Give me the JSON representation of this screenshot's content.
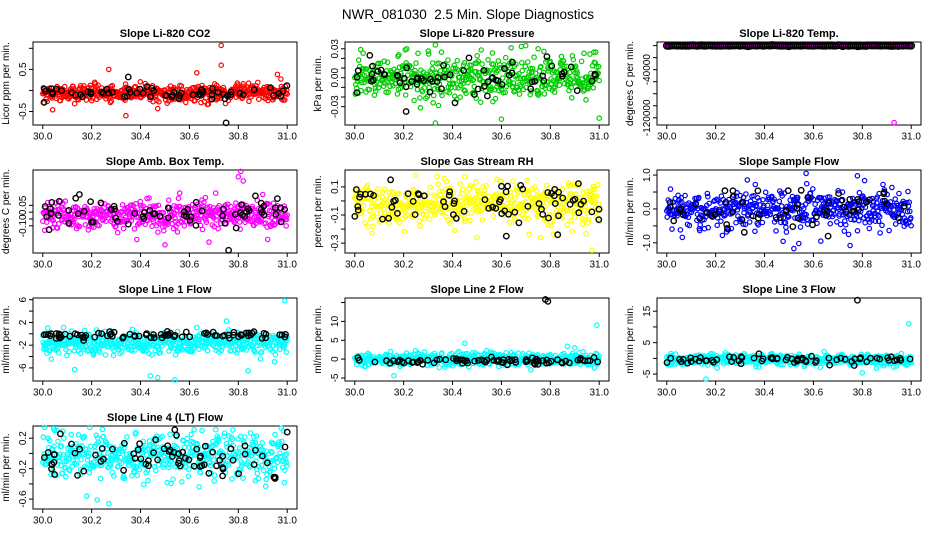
{
  "figure": {
    "title": "NWR_081030  2.5 Min. Slope Diagnostics",
    "background": "#FFFFFF",
    "frame_color": "#000000",
    "marker": "open-circle"
  },
  "axes": {
    "xlim": [
      29.96,
      31.04
    ],
    "xticks": [
      {
        "v": 30.0,
        "l": "30.0"
      },
      {
        "v": 30.2,
        "l": "30.2"
      },
      {
        "v": 30.4,
        "l": "30.4"
      },
      {
        "v": 30.6,
        "l": "30.6"
      },
      {
        "v": 30.8,
        "l": "30.8"
      },
      {
        "v": 31.0,
        "l": "31.0"
      }
    ]
  },
  "chart_data": [
    {
      "id": "slope-li820-co2",
      "type": "scatter",
      "title": "Slope Li-820 CO2",
      "ylabel": "Licor ppm per min.",
      "color": "#FF0000",
      "ylim": [
        -0.82,
        1.15
      ],
      "yticks": [
        {
          "v": 1.0,
          "l": ""
        },
        {
          "v": 0.5,
          "l": "0.5"
        },
        {
          "v": 0.0,
          "l": ""
        },
        {
          "v": -0.5,
          "l": "-0.5"
        }
      ],
      "series": [
        {
          "name": "slope",
          "color": "#FF0000",
          "n": 500,
          "mean": -0.07,
          "sd": 0.1,
          "r": 2.2,
          "spread": "even"
        },
        {
          "name": "flagged",
          "color": "#000000",
          "n": 65,
          "mean": -0.09,
          "sd": 0.08,
          "r": 2.7,
          "spread": "random"
        }
      ],
      "outliers": [
        {
          "x": 30.73,
          "y": 1.07,
          "s": "slope"
        },
        {
          "x": 30.73,
          "y": 0.6,
          "s": "slope"
        },
        {
          "x": 30.27,
          "y": 0.5,
          "s": "slope"
        },
        {
          "x": 30.63,
          "y": 0.42,
          "s": "slope"
        },
        {
          "x": 30.96,
          "y": 0.38,
          "s": "slope"
        },
        {
          "x": 30.04,
          "y": -0.46,
          "s": "slope"
        },
        {
          "x": 30.34,
          "y": -0.6,
          "s": "slope"
        },
        {
          "x": 30.47,
          "y": -0.43,
          "s": "slope"
        },
        {
          "x": 30.75,
          "y": -0.77,
          "s": "flagged"
        },
        {
          "x": 30.35,
          "y": 0.32,
          "s": "flagged"
        }
      ]
    },
    {
      "id": "slope-li820-pressure",
      "type": "scatter",
      "title": "Slope Li-820 Pressure",
      "ylabel": "kPa per min.",
      "color": "#00CD00",
      "ylim": [
        -0.049,
        0.037
      ],
      "yticks": [
        {
          "v": 0.03,
          "l": "0.03"
        },
        {
          "v": 0.02,
          "l": ""
        },
        {
          "v": 0.01,
          "l": ""
        },
        {
          "v": 0.0,
          "l": "0.00"
        },
        {
          "v": -0.01,
          "l": ""
        },
        {
          "v": -0.02,
          "l": ""
        },
        {
          "v": -0.03,
          "l": "-0.03"
        }
      ],
      "series": [
        {
          "name": "slope",
          "color": "#00CD00",
          "n": 500,
          "mean": 0.0,
          "sd": 0.011,
          "r": 2.2,
          "spread": "even"
        },
        {
          "name": "flagged",
          "color": "#000000",
          "n": 65,
          "mean": -0.001,
          "sd": 0.009,
          "r": 2.7,
          "spread": "random"
        }
      ],
      "outliers": [
        {
          "x": 30.33,
          "y": 0.034,
          "s": "slope"
        },
        {
          "x": 30.33,
          "y": -0.047,
          "s": "slope"
        },
        {
          "x": 30.6,
          "y": -0.043,
          "s": "slope"
        },
        {
          "x": 31.0,
          "y": -0.042,
          "s": "slope"
        },
        {
          "x": 30.75,
          "y": 0.03,
          "s": "slope"
        },
        {
          "x": 30.64,
          "y": 0.031,
          "s": "slope"
        },
        {
          "x": 30.21,
          "y": -0.035,
          "s": "flagged"
        },
        {
          "x": 30.41,
          "y": -0.026,
          "s": "flagged"
        }
      ]
    },
    {
      "id": "slope-li820-temp",
      "type": "scatter",
      "title": "Slope Li-820 Temp.",
      "ylabel": "degrees C per min.",
      "color": "#FF00FF",
      "ylim": [
        -132000,
        6000
      ],
      "yticks": [
        {
          "v": 0,
          "l": ""
        },
        {
          "v": -20000,
          "l": ""
        },
        {
          "v": -40000,
          "l": "-40000"
        },
        {
          "v": -60000,
          "l": ""
        },
        {
          "v": -80000,
          "l": ""
        },
        {
          "v": -100000,
          "l": ""
        },
        {
          "v": -120000,
          "l": "-120000"
        }
      ],
      "series": [
        {
          "name": "slope",
          "color": "#FF00FF",
          "n": 550,
          "mean": 0,
          "sd": 500,
          "r": 2.6,
          "spread": "even"
        },
        {
          "name": "flagged",
          "color": "#000000",
          "n": 115,
          "mean": 0,
          "sd": 400,
          "r": 3.2,
          "spread": "even"
        }
      ],
      "outliers": [
        {
          "x": 30.93,
          "y": -128000,
          "s": "slope"
        }
      ]
    },
    {
      "id": "slope-amb-box-temp",
      "type": "scatter",
      "title": "Slope Amb. Box Temp.",
      "ylabel": "degrees C per min.",
      "color": "#FF00FF",
      "ylim": [
        -0.3,
        0.31
      ],
      "yticks": [
        {
          "v": 0.05,
          "l": "0.05"
        },
        {
          "v": 0.0,
          "l": ""
        },
        {
          "v": -0.05,
          "l": ""
        },
        {
          "v": -0.1,
          "l": "-0.10"
        }
      ],
      "series": [
        {
          "name": "slope",
          "color": "#FF00FF",
          "n": 500,
          "mean": -0.02,
          "sd": 0.05,
          "r": 2.2,
          "spread": "even"
        },
        {
          "name": "flagged",
          "color": "#000000",
          "n": 65,
          "mean": -0.015,
          "sd": 0.045,
          "r": 2.7,
          "spread": "random"
        }
      ],
      "outliers": [
        {
          "x": 30.81,
          "y": 0.3,
          "s": "slope"
        },
        {
          "x": 30.8,
          "y": 0.26,
          "s": "slope"
        },
        {
          "x": 30.82,
          "y": 0.23,
          "s": "slope"
        },
        {
          "x": 30.56,
          "y": 0.14,
          "s": "slope"
        },
        {
          "x": 30.9,
          "y": 0.13,
          "s": "slope"
        },
        {
          "x": 30.5,
          "y": -0.24,
          "s": "slope"
        },
        {
          "x": 30.68,
          "y": -0.22,
          "s": "slope"
        },
        {
          "x": 30.92,
          "y": -0.2,
          "s": "slope"
        },
        {
          "x": 30.15,
          "y": 0.13,
          "s": "flagged"
        },
        {
          "x": 30.76,
          "y": -0.28,
          "s": "flagged"
        },
        {
          "x": 30.87,
          "y": 0.12,
          "s": "flagged"
        },
        {
          "x": 30.96,
          "y": 0.1,
          "s": "flagged"
        }
      ]
    },
    {
      "id": "slope-gas-stream-rh",
      "type": "scatter",
      "title": "Slope Gas Stream RH",
      "ylabel": "percent per min.",
      "color": "#FFFF00",
      "ylim": [
        -0.37,
        0.22
      ],
      "yticks": [
        {
          "v": 0.1,
          "l": "0.1"
        },
        {
          "v": 0.0,
          "l": ""
        },
        {
          "v": -0.1,
          "l": "-0.1"
        },
        {
          "v": -0.2,
          "l": ""
        },
        {
          "v": -0.3,
          "l": "-0.3"
        }
      ],
      "series": [
        {
          "name": "slope",
          "color": "#FFFF00",
          "n": 500,
          "mean": -0.02,
          "sd": 0.075,
          "r": 2.2,
          "spread": "even"
        },
        {
          "name": "flagged",
          "color": "#000000",
          "n": 70,
          "mean": -0.02,
          "sd": 0.075,
          "r": 2.7,
          "spread": "random"
        }
      ],
      "outliers": [
        {
          "x": 30.97,
          "y": -0.35,
          "s": "slope"
        },
        {
          "x": 30.5,
          "y": -0.26,
          "s": "slope"
        },
        {
          "x": 30.76,
          "y": -0.26,
          "s": "slope"
        },
        {
          "x": 30.07,
          "y": -0.23,
          "s": "slope"
        },
        {
          "x": 30.25,
          "y": 0.18,
          "s": "slope"
        },
        {
          "x": 30.45,
          "y": 0.17,
          "s": "slope"
        },
        {
          "x": 30.62,
          "y": -0.25,
          "s": "flagged"
        },
        {
          "x": 30.83,
          "y": -0.24,
          "s": "flagged"
        }
      ]
    },
    {
      "id": "slope-sample-flow",
      "type": "scatter",
      "title": "Slope Sample Flow",
      "ylabel": "ml/min per min.",
      "color": "#0000FF",
      "ylim": [
        -1.3,
        1.15
      ],
      "yticks": [
        {
          "v": 1.0,
          "l": "1.0"
        },
        {
          "v": 0.5,
          "l": ""
        },
        {
          "v": 0.0,
          "l": "0.0"
        },
        {
          "v": -0.5,
          "l": ""
        },
        {
          "v": -1.0,
          "l": "-1.0"
        }
      ],
      "series": [
        {
          "name": "slope",
          "color": "#0000FF",
          "n": 520,
          "mean": 0.0,
          "sd": 0.28,
          "r": 2.2,
          "spread": "even"
        },
        {
          "name": "flagged",
          "color": "#000000",
          "n": 60,
          "mean": -0.05,
          "sd": 0.3,
          "r": 2.7,
          "spread": "random"
        }
      ],
      "outliers": [
        {
          "x": 30.52,
          "y": -1.17,
          "s": "slope"
        },
        {
          "x": 30.54,
          "y": -1.02,
          "s": "slope"
        },
        {
          "x": 30.75,
          "y": -1.08,
          "s": "slope"
        },
        {
          "x": 30.63,
          "y": -0.95,
          "s": "slope"
        },
        {
          "x": 30.57,
          "y": 1.05,
          "s": "slope"
        },
        {
          "x": 30.78,
          "y": 0.98,
          "s": "slope"
        },
        {
          "x": 30.55,
          "y": 0.55,
          "s": "flagged"
        },
        {
          "x": 30.66,
          "y": -0.8,
          "s": "flagged"
        }
      ]
    },
    {
      "id": "slope-line1-flow",
      "type": "scatter",
      "title": "Slope Line 1 Flow",
      "ylabel": "ml/min per min.",
      "color": "#00FFFF",
      "ylim": [
        -8.3,
        6.3
      ],
      "yticks": [
        {
          "v": 6,
          "l": "6"
        },
        {
          "v": 4,
          "l": ""
        },
        {
          "v": 2,
          "l": "2"
        },
        {
          "v": 0,
          "l": ""
        },
        {
          "v": -2,
          "l": "-2"
        },
        {
          "v": -4,
          "l": ""
        },
        {
          "v": -6,
          "l": "-6"
        }
      ],
      "series": [
        {
          "name": "slope",
          "color": "#00FFFF",
          "n": 520,
          "mean": -1.7,
          "sd": 1.0,
          "r": 2.2,
          "spread": "even"
        },
        {
          "name": "flagged",
          "color": "#000000",
          "n": 85,
          "mean": -0.25,
          "sd": 0.35,
          "r": 2.7,
          "spread": "random"
        }
      ],
      "outliers": [
        {
          "x": 30.99,
          "y": 5.8,
          "s": "slope"
        },
        {
          "x": 30.13,
          "y": -6.3,
          "s": "slope"
        },
        {
          "x": 30.44,
          "y": -7.4,
          "s": "slope"
        },
        {
          "x": 30.47,
          "y": -7.7,
          "s": "slope"
        },
        {
          "x": 30.54,
          "y": -8.1,
          "s": "slope"
        },
        {
          "x": 30.84,
          "y": -6.5,
          "s": "slope"
        },
        {
          "x": 30.02,
          "y": 1.0,
          "s": "slope"
        }
      ]
    },
    {
      "id": "slope-line2-flow",
      "type": "scatter",
      "title": "Slope Line 2 Flow",
      "ylabel": "ml/min per min.",
      "color": "#00FFFF",
      "ylim": [
        -5.8,
        16.2
      ],
      "yticks": [
        {
          "v": 15,
          "l": ""
        },
        {
          "v": 10,
          "l": "10"
        },
        {
          "v": 5,
          "l": "5"
        },
        {
          "v": 0,
          "l": "0"
        },
        {
          "v": -5,
          "l": "-5"
        }
      ],
      "series": [
        {
          "name": "slope",
          "color": "#00FFFF",
          "n": 520,
          "mean": 0.0,
          "sd": 0.85,
          "r": 2.2,
          "spread": "even"
        },
        {
          "name": "flagged",
          "color": "#000000",
          "n": 85,
          "mean": -0.45,
          "sd": 0.45,
          "r": 2.7,
          "spread": "random"
        }
      ],
      "outliers": [
        {
          "x": 30.78,
          "y": 15.8,
          "s": "flagged"
        },
        {
          "x": 30.79,
          "y": 15.3,
          "s": "flagged"
        },
        {
          "x": 30.99,
          "y": 9.0,
          "s": "slope"
        },
        {
          "x": 30.16,
          "y": -4.4,
          "s": "slope"
        },
        {
          "x": 30.45,
          "y": 4.2,
          "s": "slope"
        },
        {
          "x": 30.87,
          "y": 3.4,
          "s": "slope"
        },
        {
          "x": 30.9,
          "y": 3.0,
          "s": "slope"
        }
      ]
    },
    {
      "id": "slope-line3-flow",
      "type": "scatter",
      "title": "Slope Line 3 Flow",
      "ylabel": "ml/min per min.",
      "color": "#00FFFF",
      "ylim": [
        -7.2,
        19.2
      ],
      "yticks": [
        {
          "v": 15,
          "l": "15"
        },
        {
          "v": 10,
          "l": ""
        },
        {
          "v": 5,
          "l": "5"
        },
        {
          "v": 0,
          "l": ""
        },
        {
          "v": -5,
          "l": "-5"
        }
      ],
      "series": [
        {
          "name": "slope",
          "color": "#00FFFF",
          "n": 520,
          "mean": -0.4,
          "sd": 0.9,
          "r": 2.2,
          "spread": "even"
        },
        {
          "name": "flagged",
          "color": "#000000",
          "n": 70,
          "mean": -0.4,
          "sd": 0.7,
          "r": 2.7,
          "spread": "random"
        }
      ],
      "outliers": [
        {
          "x": 30.78,
          "y": 18.5,
          "s": "flagged"
        },
        {
          "x": 30.99,
          "y": 11.0,
          "s": "slope"
        },
        {
          "x": 30.16,
          "y": -6.6,
          "s": "slope"
        },
        {
          "x": 30.8,
          "y": -4.6,
          "s": "slope"
        }
      ]
    },
    {
      "id": "slope-line4-lt-flow",
      "type": "scatter",
      "title": "Slope Line 4 (LT) Flow",
      "ylabel": "ml/min per min.",
      "color": "#00FFFF",
      "ylim": [
        -0.73,
        0.36
      ],
      "yticks": [
        {
          "v": 0.2,
          "l": "0.2"
        },
        {
          "v": 0.0,
          "l": ""
        },
        {
          "v": -0.2,
          "l": "-0.2"
        },
        {
          "v": -0.4,
          "l": ""
        },
        {
          "v": -0.6,
          "l": "-0.6"
        }
      ],
      "series": [
        {
          "name": "slope",
          "color": "#00FFFF",
          "n": 500,
          "mean": -0.02,
          "sd": 0.15,
          "r": 2.2,
          "spread": "even"
        },
        {
          "name": "flagged",
          "color": "#000000",
          "n": 75,
          "mean": -0.05,
          "sd": 0.14,
          "r": 2.7,
          "spread": "random"
        }
      ],
      "outliers": [
        {
          "x": 30.27,
          "y": -0.66,
          "s": "slope"
        },
        {
          "x": 30.18,
          "y": -0.56,
          "s": "slope"
        },
        {
          "x": 30.64,
          "y": -0.44,
          "s": "slope"
        },
        {
          "x": 30.87,
          "y": -0.36,
          "s": "slope"
        },
        {
          "x": 30.54,
          "y": 0.31,
          "s": "flagged"
        },
        {
          "x": 30.95,
          "y": -0.33,
          "s": "flagged"
        },
        {
          "x": 31.0,
          "y": 0.28,
          "s": "flagged"
        }
      ]
    }
  ]
}
